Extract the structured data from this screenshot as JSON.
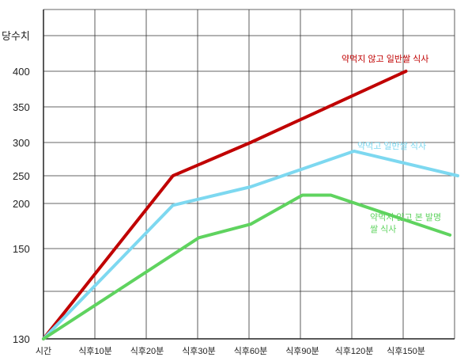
{
  "chart_data": {
    "type": "line",
    "ylabel": "당수치",
    "x_categories": [
      "시간",
      "식후10분",
      "식후20분",
      "식후30분",
      "식후60분",
      "식후90분",
      "식후120분",
      "식후150분"
    ],
    "y_ticks": [
      "130",
      "150",
      "200",
      "250",
      "300",
      "350",
      "400"
    ],
    "grid": true,
    "series": [
      {
        "name": "약먹지 않고 일반쌀 식사",
        "color": "#c00000",
        "points": [
          [
            0,
            130
          ],
          [
            2.5,
            250
          ],
          [
            4,
            300
          ],
          [
            7,
            400
          ]
        ]
      },
      {
        "name": "약먹고 일반쌀 식사",
        "color": "#7dd8f0",
        "points": [
          [
            0,
            130
          ],
          [
            2.5,
            198
          ],
          [
            4,
            230
          ],
          [
            6,
            287
          ],
          [
            8,
            250
          ]
        ]
      },
      {
        "name": "약먹지 않고 본 발명\n쌀 식사",
        "color": "#5fd35f",
        "points": [
          [
            0,
            130
          ],
          [
            3,
            162
          ],
          [
            4,
            177
          ],
          [
            5,
            215
          ],
          [
            5.55,
            215
          ],
          [
            7.85,
            165
          ]
        ]
      }
    ]
  }
}
